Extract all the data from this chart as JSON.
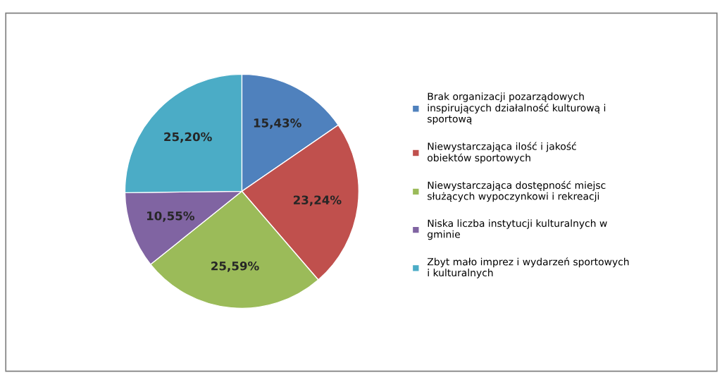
{
  "chart_data": {
    "type": "pie",
    "categories": [
      "Brak organizacji pozarządowych inspirujących działalność kulturową i sportową",
      "Niewystarczająca ilość i jakość obiektów sportowych",
      "Niewystarczająca dostępność miejsc służących wypoczynkowi i rekreacji",
      "Niska liczba instytucji kulturalnych w gminie",
      "Zbyt mało imprez i wydarzeń sportowych i kulturalnych"
    ],
    "values": [
      15.43,
      23.24,
      25.59,
      10.55,
      25.2
    ],
    "value_labels": [
      "15,43%",
      "23,24%",
      "25,59%",
      "10,55%",
      "25,20%"
    ],
    "colors": [
      "#4f81bd",
      "#c0504d",
      "#9bbb59",
      "#8064a2",
      "#4bacc6"
    ],
    "legend": "right"
  }
}
